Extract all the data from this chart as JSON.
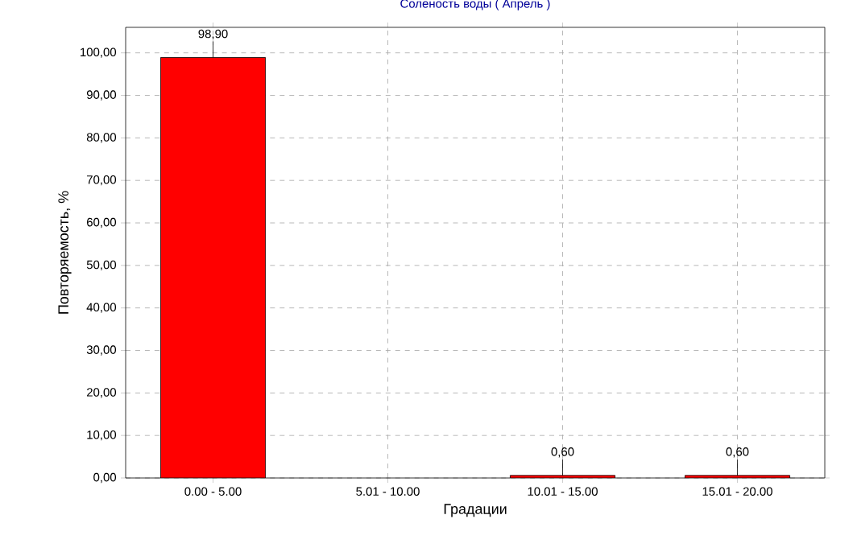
{
  "chart_data": {
    "type": "bar",
    "title": "Соленость воды    ( Апрель )",
    "xlabel": "Градации",
    "ylabel": "Повторяемость, %",
    "categories": [
      "0.00 - 5.00",
      "5.01 - 10.00",
      "10.01 - 15.00",
      "15.01 - 20.00"
    ],
    "values": [
      98.9,
      null,
      0.6,
      0.6
    ],
    "value_labels": [
      "98,90",
      null,
      "0,60",
      "0,60"
    ],
    "colors": [
      "#ff0000",
      "#ff0000",
      "#ff0000",
      "#ff0000"
    ],
    "ylim": [
      0,
      106
    ],
    "yticks": [
      {
        "value": 0,
        "label": "0,00"
      },
      {
        "value": 10,
        "label": "10,00"
      },
      {
        "value": 20,
        "label": "20,00"
      },
      {
        "value": 30,
        "label": "30,00"
      },
      {
        "value": 40,
        "label": "40,00"
      },
      {
        "value": 50,
        "label": "50,00"
      },
      {
        "value": 60,
        "label": "60,00"
      },
      {
        "value": 70,
        "label": "70,00"
      },
      {
        "value": 80,
        "label": "80,00"
      },
      {
        "value": 90,
        "label": "90,00"
      },
      {
        "value": 100,
        "label": "100,00"
      }
    ],
    "grid": true
  }
}
